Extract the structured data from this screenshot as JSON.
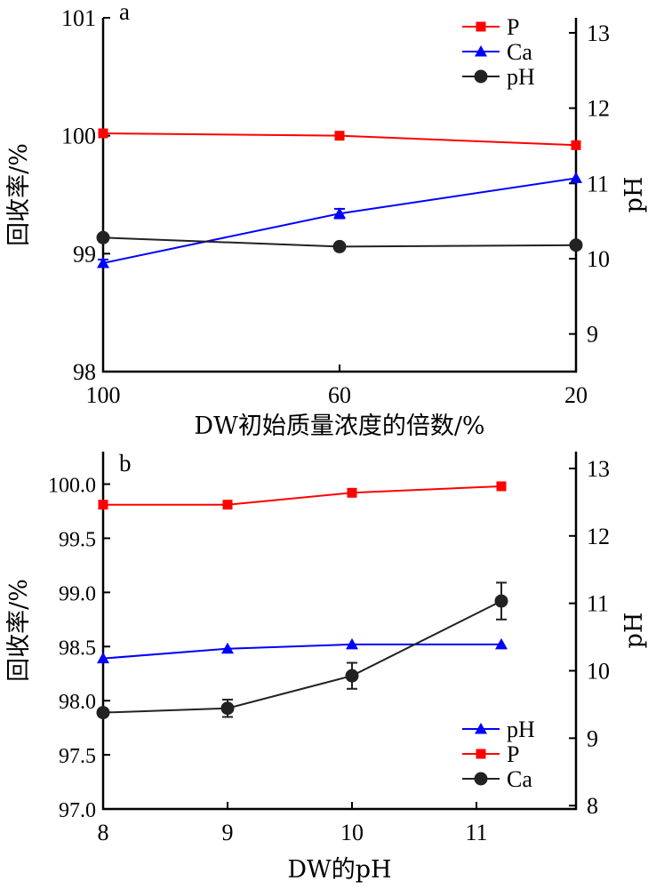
{
  "chart_data": [
    {
      "type": "line",
      "panel_label": "a",
      "xlabel": "DW初始质量浓度的倍数/%",
      "ylabel": "回收率/%",
      "y2label": "pH",
      "categories": [
        "100",
        "60",
        "20"
      ],
      "ylim": [
        98,
        101
      ],
      "yticks": [
        "98",
        "99",
        "100",
        "101"
      ],
      "y2lim": [
        8.5,
        13.2
      ],
      "y2ticks": [
        "9",
        "10",
        "11",
        "12",
        "13"
      ],
      "legend_position": "top-right",
      "series": [
        {
          "name": "P",
          "axis": "left",
          "marker": "square",
          "color": "#ff0000",
          "values": [
            100.02,
            100.0,
            99.92
          ],
          "errors": [
            0,
            0,
            0
          ]
        },
        {
          "name": "Ca",
          "axis": "left",
          "marker": "triangle",
          "color": "#0000ff",
          "values": [
            98.92,
            99.34,
            99.64
          ],
          "errors": [
            0.03,
            0.04,
            0
          ]
        },
        {
          "name": "pH",
          "axis": "right",
          "marker": "circle",
          "color": "#000000",
          "values": [
            10.28,
            10.16,
            10.18
          ],
          "errors": [
            0,
            0,
            0
          ]
        }
      ]
    },
    {
      "type": "line",
      "panel_label": "b",
      "xlabel": "DW的pH",
      "ylabel": "回收率/%",
      "y2label": "pH",
      "x": [
        8,
        9,
        10,
        11.2
      ],
      "xlim": [
        8,
        11.8
      ],
      "xticks": [
        "8",
        "9",
        "10",
        "11"
      ],
      "ylim": [
        97.0,
        100.3
      ],
      "yticks": [
        "97.0",
        "97.5",
        "98.0",
        "98.5",
        "99.0",
        "99.5",
        "100.0"
      ],
      "y2lim": [
        7.95,
        13.25
      ],
      "y2ticks": [
        "8",
        "9",
        "10",
        "11",
        "12",
        "13"
      ],
      "legend_position": "bottom-right",
      "series": [
        {
          "name": "pH",
          "axis": "left",
          "marker": "triangle",
          "color": "#0000ff",
          "values": [
            98.39,
            98.48,
            98.52,
            98.52
          ],
          "errors": [
            0,
            0,
            0,
            0
          ]
        },
        {
          "name": "P",
          "axis": "left",
          "marker": "square",
          "color": "#ff0000",
          "values": [
            99.81,
            99.81,
            99.92,
            99.98
          ],
          "errors": [
            0,
            0,
            0,
            0
          ]
        },
        {
          "name": "Ca",
          "axis": "left",
          "marker": "circle",
          "color": "#000000",
          "values": [
            97.89,
            97.93,
            98.23,
            98.92
          ],
          "errors": [
            0,
            0.08,
            0.12,
            0.17
          ]
        }
      ]
    }
  ]
}
